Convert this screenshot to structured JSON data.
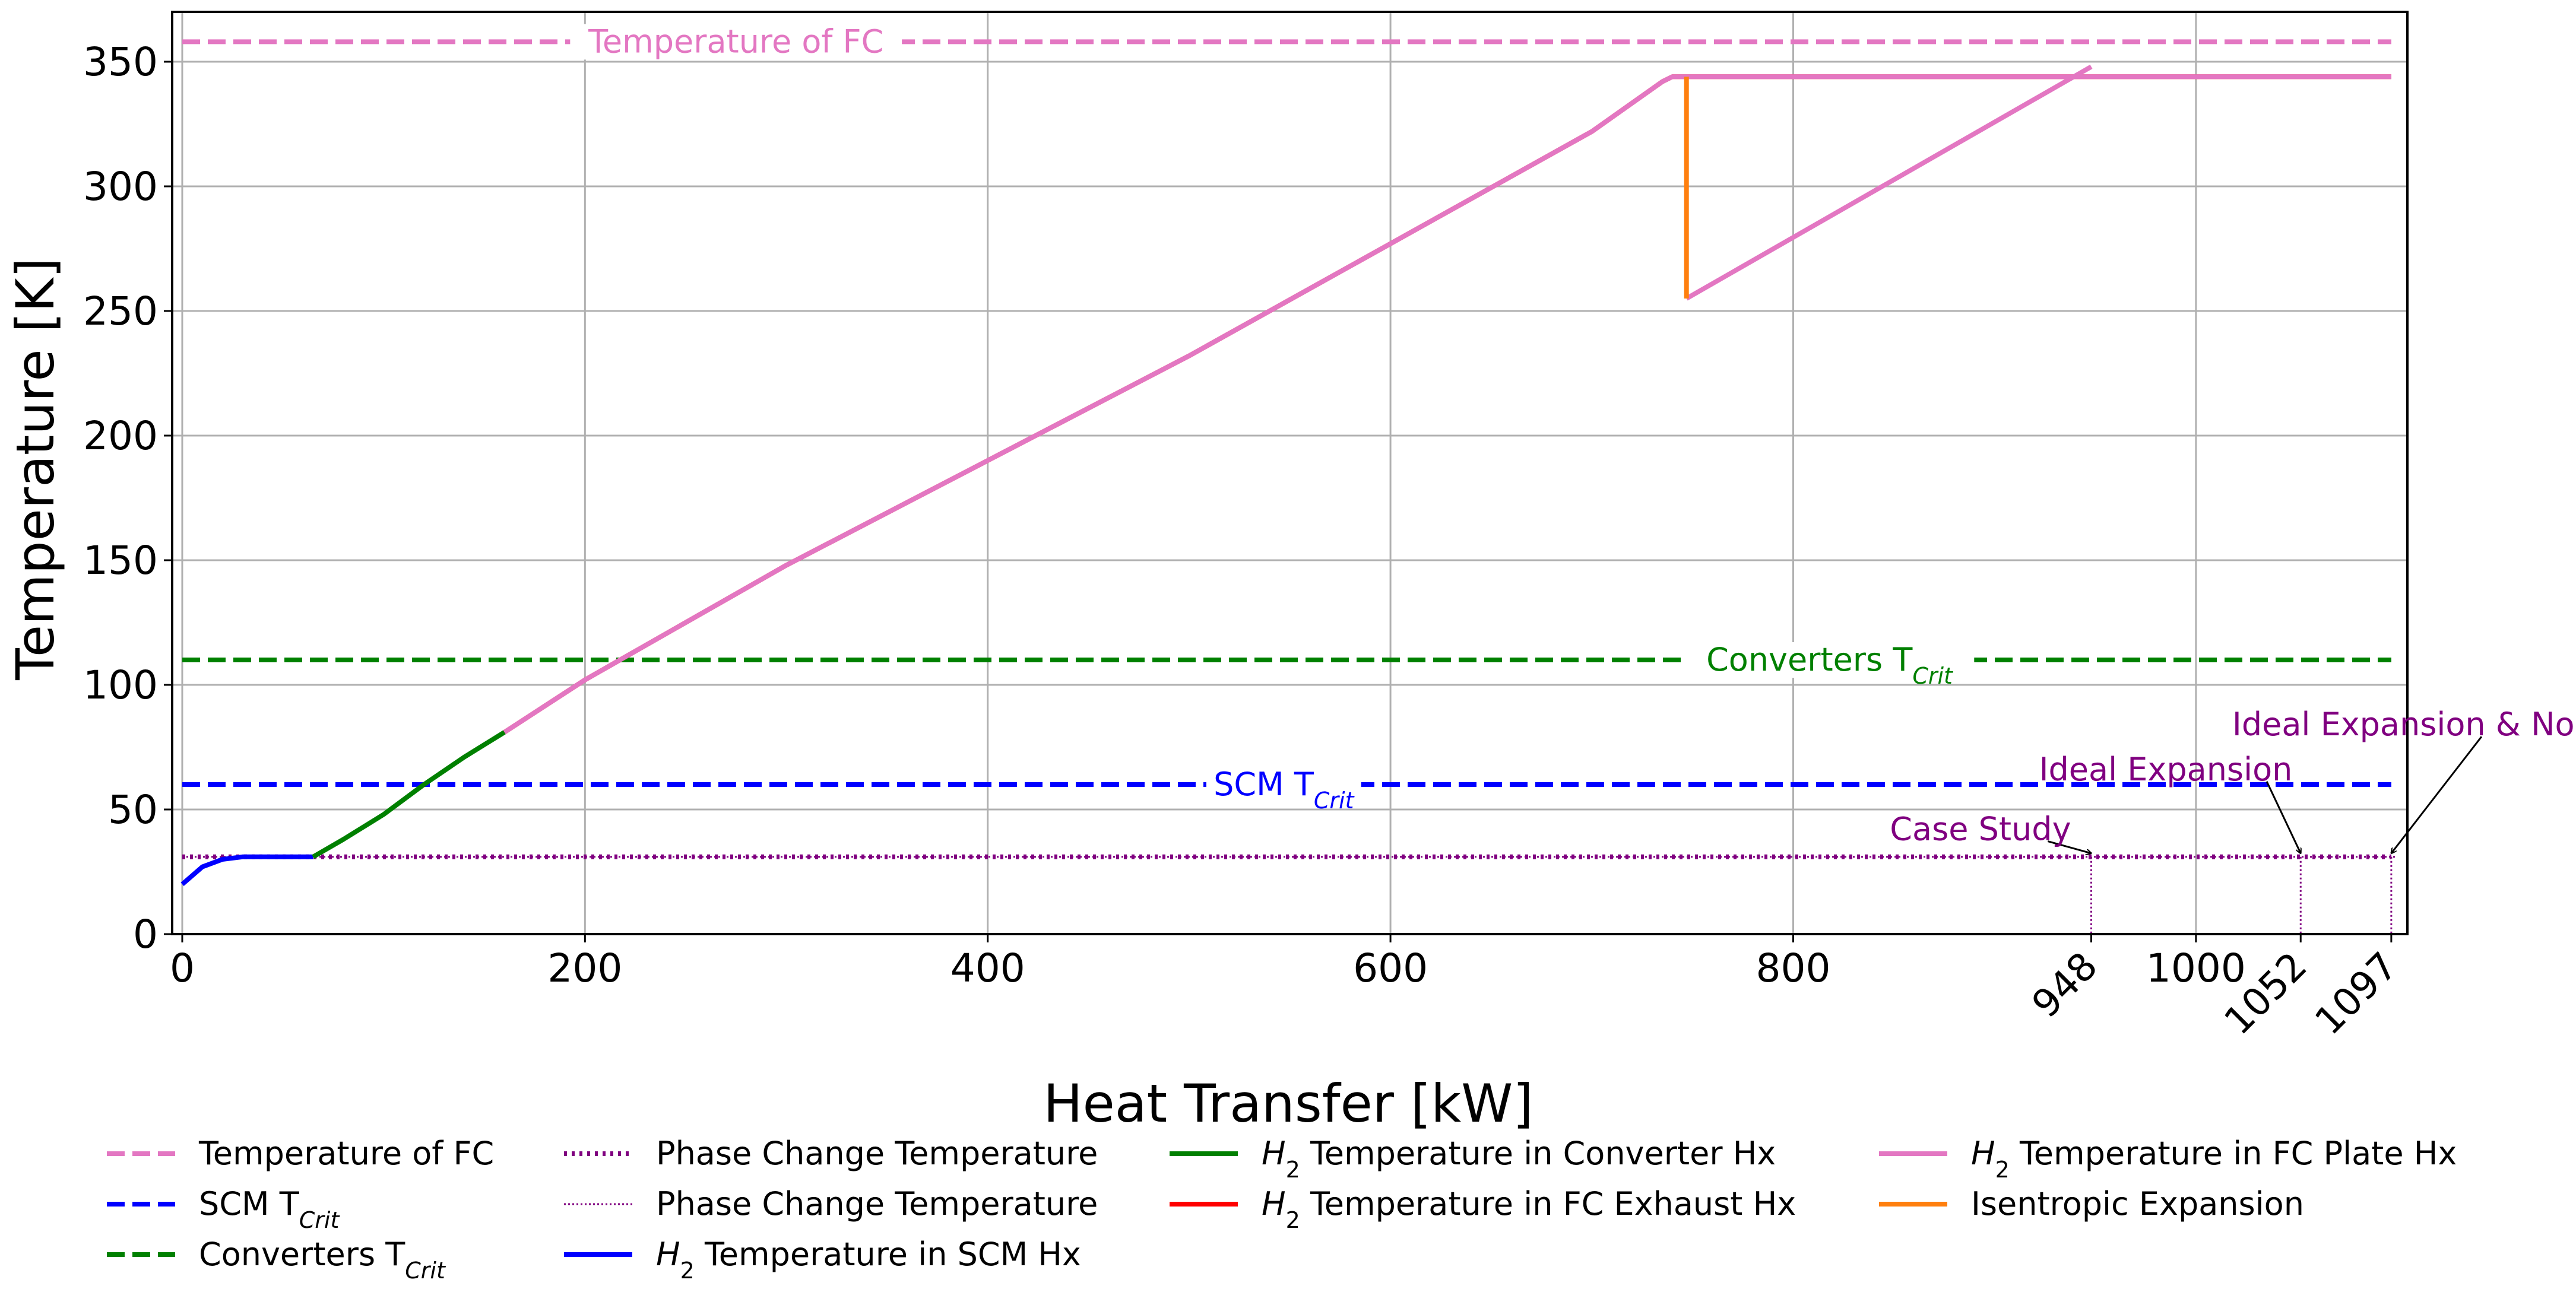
{
  "chart_data": {
    "type": "line",
    "title": "",
    "xlabel": "Heat Transfer [kW]",
    "ylabel": "Temperature [K]",
    "xlim": [
      -5,
      1105
    ],
    "ylim": [
      0,
      370
    ],
    "grid": true,
    "x_ticks": [
      0,
      200,
      400,
      600,
      800,
      1000
    ],
    "y_ticks": [
      0,
      50,
      100,
      150,
      200,
      250,
      300,
      350
    ],
    "extra_x_ticks": [
      948,
      1052,
      1097
    ],
    "legend_placement": "bottom",
    "colors": {
      "fc": "#e377c2",
      "scm": "#0000ff",
      "converter": "#008000",
      "phase": "#800080",
      "exhaust": "#ff0000",
      "isentropic": "#ff7f0e"
    },
    "series": [
      {
        "name": "Temperature of FC",
        "style": "dashed",
        "color": "#e377c2",
        "x": [
          0,
          1097
        ],
        "y": [
          358,
          358
        ]
      },
      {
        "name": "SCM T_Crit",
        "style": "dashed",
        "color": "#0000ff",
        "x": [
          0,
          1097
        ],
        "y": [
          60,
          60
        ]
      },
      {
        "name": "Converters T_Crit",
        "style": "dashed",
        "color": "#008000",
        "x": [
          0,
          1097
        ],
        "y": [
          110,
          110
        ]
      },
      {
        "name": "Phase Change Temperature",
        "style": "densely-dotted",
        "color": "#800080",
        "x": [
          0,
          1097
        ],
        "y": [
          31,
          31
        ]
      },
      {
        "name": "Phase Change Temperature",
        "style": "fine-dotted",
        "color": "#800080",
        "x": [
          0,
          1100
        ],
        "y": [
          31,
          31
        ]
      },
      {
        "name": "H2 Temperature in SCM Hx",
        "style": "solid",
        "color": "#0000ff",
        "x": [
          0,
          10,
          20,
          30,
          60,
          65
        ],
        "y": [
          20,
          27,
          30,
          31,
          31,
          31
        ]
      },
      {
        "name": "H2 Temperature in Converter Hx",
        "style": "solid",
        "color": "#008000",
        "x": [
          65,
          80,
          100,
          120,
          140,
          160
        ],
        "y": [
          31,
          38,
          48,
          60,
          71,
          81
        ]
      },
      {
        "name": "H2 Temperature in FC Exhaust Hx",
        "style": "solid",
        "color": "#ff0000",
        "x": [
          160,
          200,
          300,
          400,
          500,
          600,
          700,
          735,
          740,
          1097
        ],
        "y": [
          81,
          102,
          148,
          190,
          232,
          277,
          322,
          342,
          344,
          344
        ]
      },
      {
        "name": "H2 Temperature in FC Plate Hx",
        "style": "solid",
        "color": "#e377c2",
        "x": [
          160,
          200,
          300,
          400,
          500,
          600,
          700,
          735,
          740,
          1097
        ],
        "y": [
          81,
          102,
          148,
          190,
          232,
          277,
          322,
          342,
          344,
          344
        ]
      },
      {
        "name": "H2 Temperature in FC Plate Hx",
        "style": "solid",
        "color": "#e377c2",
        "x": [
          747,
          948
        ],
        "y": [
          255,
          348
        ]
      },
      {
        "name": "Isentropic Expansion",
        "style": "solid",
        "color": "#ff7f0e",
        "x": [
          747,
          747
        ],
        "y": [
          344,
          255
        ]
      }
    ],
    "vlines": [
      {
        "x": 948,
        "y_top": 31
      },
      {
        "x": 1052,
        "y_top": 31
      },
      {
        "x": 1097,
        "y_top": 31
      }
    ],
    "annotations": [
      {
        "text": "Temperature of FC",
        "x": 275,
        "y": 358,
        "color": "#e377c2",
        "anchor": "middle"
      },
      {
        "text": "Converters T",
        "sub": "Crit",
        "x": 818,
        "y": 110,
        "color": "#008000",
        "anchor": "middle"
      },
      {
        "text": "SCM T",
        "sub": "Crit",
        "x": 547,
        "y": 60,
        "color": "#0000ff",
        "anchor": "middle"
      },
      {
        "text": "Case Study",
        "x": 893,
        "y": 42,
        "color": "#800080",
        "anchor": "middle",
        "arrow_to": {
          "x": 948,
          "y": 31
        }
      },
      {
        "text": "Ideal Expansion",
        "x": 985,
        "y": 66,
        "color": "#800080",
        "anchor": "middle",
        "arrow_to": {
          "x": 1052,
          "y": 31
        }
      },
      {
        "text": "Ideal Expansion & No Losses",
        "x": 1018,
        "y": 84,
        "color": "#800080",
        "anchor": "start",
        "arrow_to": {
          "x": 1097,
          "y": 31
        }
      }
    ],
    "legend": [
      {
        "label": "Temperature of FC",
        "color": "#e377c2",
        "style": "dashed"
      },
      {
        "label": "SCM T",
        "sub": "Crit",
        "color": "#0000ff",
        "style": "dashed"
      },
      {
        "label": "Converters T",
        "sub": "Crit",
        "color": "#008000",
        "style": "dashed"
      },
      {
        "label": "Phase Change Temperature",
        "color": "#800080",
        "style": "densely-dotted"
      },
      {
        "label": "Phase Change Temperature",
        "color": "#800080",
        "style": "fine-dotted"
      },
      {
        "label": " Temperature in SCM Hx",
        "prefix": "H",
        "prefix_sub": "2",
        "color": "#0000ff",
        "style": "solid"
      },
      {
        "label": " Temperature in Converter Hx",
        "prefix": "H",
        "prefix_sub": "2",
        "color": "#008000",
        "style": "solid"
      },
      {
        "label": " Temperature in FC Exhaust Hx",
        "prefix": "H",
        "prefix_sub": "2",
        "color": "#ff0000",
        "style": "solid"
      },
      {
        "label": " Temperature in FC Plate Hx",
        "prefix": "H",
        "prefix_sub": "2",
        "color": "#e377c2",
        "style": "solid"
      },
      {
        "label": "Isentropic Expansion",
        "color": "#ff7f0e",
        "style": "solid"
      }
    ]
  }
}
